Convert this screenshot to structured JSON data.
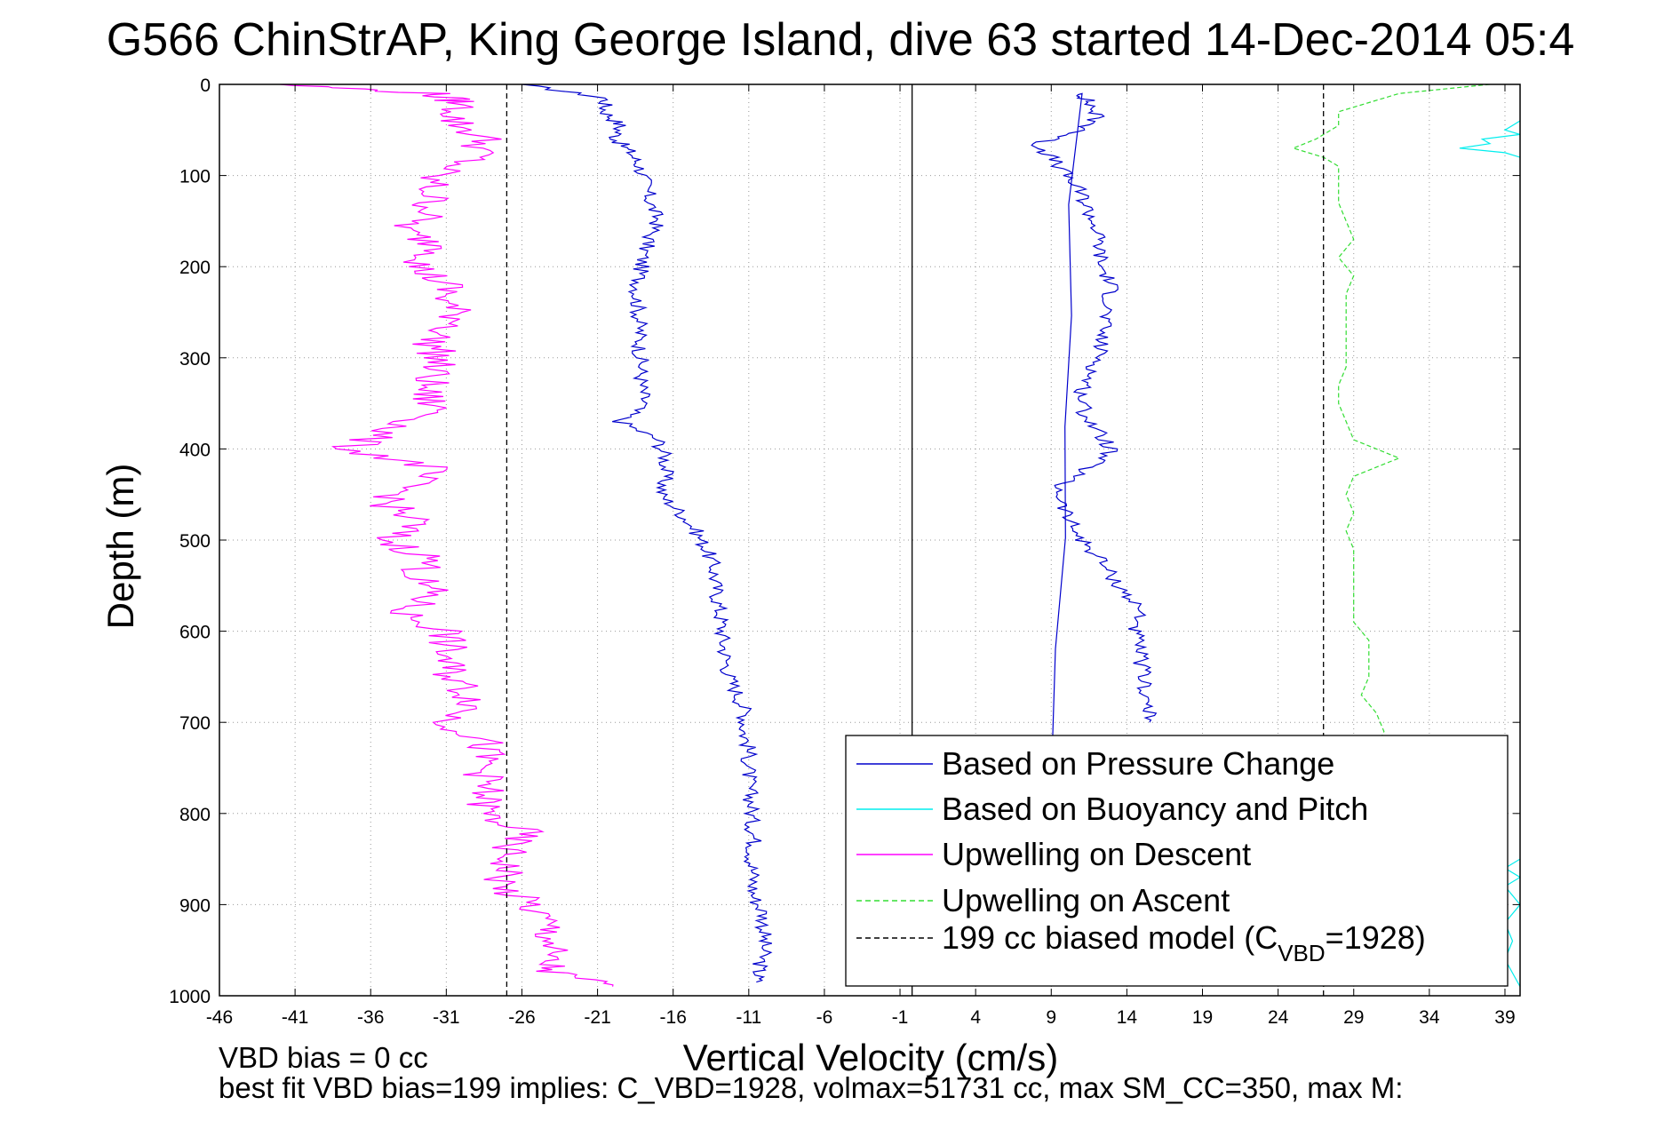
{
  "chart_data": {
    "type": "line",
    "title": "G566 ChinStrAP, King George Island, dive 63 started 14-Dec-2014 05:4",
    "xlabel": "Vertical Velocity (cm/s)",
    "ylabel": "Depth (m)",
    "xlim": [
      -46,
      40
    ],
    "ylim": [
      0,
      1000
    ],
    "y_reversed": true,
    "grid": true,
    "x_ticks": [
      "-46",
      "-41",
      "-36",
      "-31",
      "-26",
      "-21",
      "-16",
      "-11",
      "-6",
      "-1",
      "4",
      "9",
      "14",
      "19",
      "24",
      "29",
      "34",
      "39"
    ],
    "y_ticks": [
      "0",
      "100",
      "200",
      "300",
      "400",
      "500",
      "600",
      "700",
      "800",
      "900",
      "1000"
    ],
    "legend_position": "lower-right",
    "series": [
      {
        "name": "Based on Pressure Change",
        "color": "#0000cc",
        "style": "solid",
        "segments": [
          {
            "depth": [
              0,
              15,
              30,
              45,
              60,
              75,
              90,
              110,
              130,
              150,
              170,
              190,
              210,
              230,
              250,
              270,
              290,
              310,
              330,
              350,
              370,
              390,
              410,
              430,
              450,
              470,
              490,
              510,
              530,
              550,
              570,
              590,
              610,
              630,
              650,
              670,
              690,
              710,
              730,
              750,
              770,
              790,
              810,
              830,
              850,
              870,
              890,
              910,
              930,
              950,
              970,
              985
            ],
            "velocity": [
              -26,
              -20.5,
              -20.5,
              -19.5,
              -19.8,
              -18.8,
              -18.2,
              -17.8,
              -17.5,
              -17,
              -17.6,
              -18,
              -18.2,
              -18.4,
              -18.3,
              -18.2,
              -18.2,
              -18.1,
              -18.1,
              -17.9,
              -19.5,
              -17,
              -16.5,
              -16.5,
              -16.8,
              -15.5,
              -14.5,
              -13.8,
              -13.3,
              -13.2,
              -13,
              -12.8,
              -12.7,
              -12.5,
              -12.3,
              -11.7,
              -11.2,
              -11.3,
              -11,
              -11,
              -11,
              -10.8,
              -10.8,
              -10.6,
              -10.8,
              -10.7,
              -10.7,
              -10,
              -10,
              -10,
              -10.3,
              -10.5
            ]
          },
          {
            "depth": [
              985,
              10,
              20,
              35,
              50,
              65,
              80,
              100,
              120,
              140,
              160,
              180,
              200,
              220,
              240,
              260,
              280,
              300,
              320,
              340,
              360,
              380,
              400,
              420,
              440,
              460,
              480,
              500,
              520,
              540,
              560,
              580,
              600,
              620,
              640,
              660,
              680,
              700
            ],
            "velocity": [
              8,
              11,
              11.5,
              12,
              11.2,
              8,
              9,
              10,
              11,
              11.5,
              12,
              12.2,
              12.3,
              13,
              12.8,
              12.5,
              12.3,
              12.2,
              11.5,
              11,
              11.2,
              12,
              13,
              11.5,
              9.5,
              9.7,
              10.2,
              11,
              12.2,
              13,
              14,
              15,
              14.5,
              14.8,
              15,
              15.2,
              15.3,
              15.5
            ]
          }
        ]
      },
      {
        "name": "Based on Buoyancy and Pitch",
        "color": "#00eeee",
        "style": "solid",
        "segments": [
          {
            "depth": [
              40,
              45,
              50,
              55,
              60,
              65,
              70,
              75,
              80
            ],
            "velocity": [
              40,
              39.5,
              39,
              40,
              37.5,
              38,
              36,
              39,
              40
            ]
          },
          {
            "depth": [
              850,
              860,
              870,
              880,
              900,
              920,
              940,
              960,
              990
            ],
            "velocity": [
              40,
              39,
              40,
              39,
              40,
              39,
              39.5,
              39,
              40
            ]
          }
        ]
      },
      {
        "name": "Upwelling on Descent",
        "color": "#ff00ff",
        "style": "solid",
        "segments": [
          {
            "depth": [
              0,
              10,
              20,
              40,
              60,
              80,
              100,
              120,
              140,
              160,
              180,
              200,
              220,
              240,
              260,
              280,
              300,
              320,
              340,
              360,
              380,
              400,
              420,
              440,
              460,
              480,
              500,
              520,
              540,
              560,
              580,
              600,
              620,
              640,
              660,
              680,
              700,
              720,
              740,
              760,
              780,
              800,
              820,
              840,
              860,
              880,
              900,
              920,
              940,
              960,
              975,
              990
            ],
            "velocity": [
              -42,
              -32,
              -30,
              -30.5,
              -28.5,
              -29,
              -32,
              -32,
              -32,
              -34,
              -31,
              -33,
              -31,
              -31,
              -30,
              -32,
              -31.5,
              -32,
              -32.5,
              -31.5,
              -35,
              -37.5,
              -32,
              -33.5,
              -35,
              -33,
              -35,
              -32,
              -33,
              -32,
              -34,
              -31,
              -31,
              -31,
              -30,
              -29,
              -31,
              -28.5,
              -28.5,
              -28.5,
              -28.5,
              -28.5,
              -26,
              -27,
              -27,
              -27.5,
              -25.5,
              -24.5,
              -24,
              -24.5,
              -24,
              -20
            ]
          }
        ]
      },
      {
        "name": "Upwelling on Ascent",
        "color": "#33dd33",
        "style": "dashed",
        "segments": [
          {
            "depth": [
              0,
              10,
              20,
              30,
              45,
              60,
              70,
              80,
              90,
              110,
              130,
              150,
              170,
              190,
              210,
              230,
              250,
              270,
              290,
              310,
              330,
              350,
              370,
              390,
              410,
              430,
              450,
              470,
              490,
              510,
              530,
              550,
              570,
              590,
              610,
              630,
              650,
              670,
              690,
              710,
              730,
              750,
              770,
              790,
              810,
              830,
              850,
              870,
              890,
              910,
              930,
              950,
              970,
              990
            ],
            "velocity": [
              38,
              32,
              30,
              28,
              28,
              26.5,
              25,
              27,
              28,
              28,
              28,
              28.5,
              29,
              28,
              29,
              28.5,
              28.5,
              28.5,
              28.5,
              28.5,
              28,
              28,
              28.5,
              29,
              32,
              29,
              28.5,
              29,
              28.5,
              29,
              29,
              29,
              29,
              29,
              30,
              30,
              30,
              29.5,
              30.5,
              31,
              30.5,
              30,
              30,
              31,
              30.5,
              30,
              29.5,
              29,
              29,
              29,
              29,
              29,
              28.5,
              27
            ]
          }
        ]
      },
      {
        "name": "199 cc biased model (C_VBD=1928)",
        "color": "#000000",
        "style": "dashed",
        "segments": [
          {
            "depth": [
              0,
              1000
            ],
            "velocity": [
              -27,
              -27
            ]
          },
          {
            "depth": [
              0,
              1000
            ],
            "velocity": [
              27,
              27
            ]
          }
        ]
      }
    ],
    "reference_line": {
      "velocity": -0.2,
      "color": "#000000"
    },
    "legend": [
      {
        "label": "Based on Pressure Change",
        "color": "#0000cc",
        "style": "solid"
      },
      {
        "label": "Based on Buoyancy and Pitch",
        "color": "#00eeee",
        "style": "solid"
      },
      {
        "label": "Upwelling on Descent",
        "color": "#ff00ff",
        "style": "solid"
      },
      {
        "label": "Upwelling on Ascent",
        "color": "#33dd33",
        "style": "dashed"
      },
      {
        "label_main": "199 cc biased model (C",
        "label_sub": "VBD",
        "label_end": "=1928)",
        "color": "#000000",
        "style": "dashed"
      }
    ],
    "annotations": [
      "VBD bias = 0 cc",
      "best fit VBD bias=199 implies: C_VBD=1928, volmax=51731 cc, max SM_CC=350, max M:"
    ]
  }
}
